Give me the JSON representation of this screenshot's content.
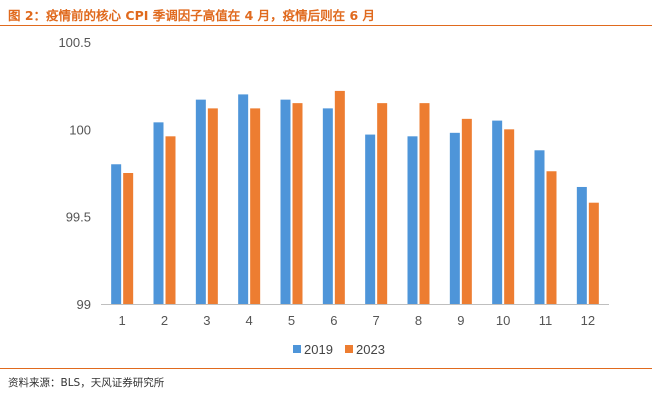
{
  "figure": {
    "title": "图 2：疫情前的核心 CPI 季调因子高值在 4 月，疫情后则在 6 月",
    "source": "资料来源：BLS，天风证券研究所"
  },
  "colors": {
    "accent": "#e06a1e",
    "series_2019": "#4e95d9",
    "series_2023": "#ed7d31"
  },
  "chart_data": {
    "type": "bar",
    "categories": [
      "1",
      "2",
      "3",
      "4",
      "5",
      "6",
      "7",
      "8",
      "9",
      "10",
      "11",
      "12"
    ],
    "series": [
      {
        "name": "2019",
        "values": [
          99.8,
          100.04,
          100.17,
          100.2,
          100.17,
          100.12,
          99.97,
          99.96,
          99.98,
          100.05,
          99.88,
          99.67
        ]
      },
      {
        "name": "2023",
        "values": [
          99.75,
          99.96,
          100.12,
          100.12,
          100.15,
          100.22,
          100.15,
          100.15,
          100.06,
          100.0,
          99.76,
          99.58
        ]
      }
    ],
    "yticks": [
      "100.5",
      "100",
      "99.5",
      "99"
    ],
    "ylim": [
      99,
      100.5
    ],
    "grid": false,
    "legend_position": "bottom",
    "xlabel": "",
    "ylabel": ""
  }
}
